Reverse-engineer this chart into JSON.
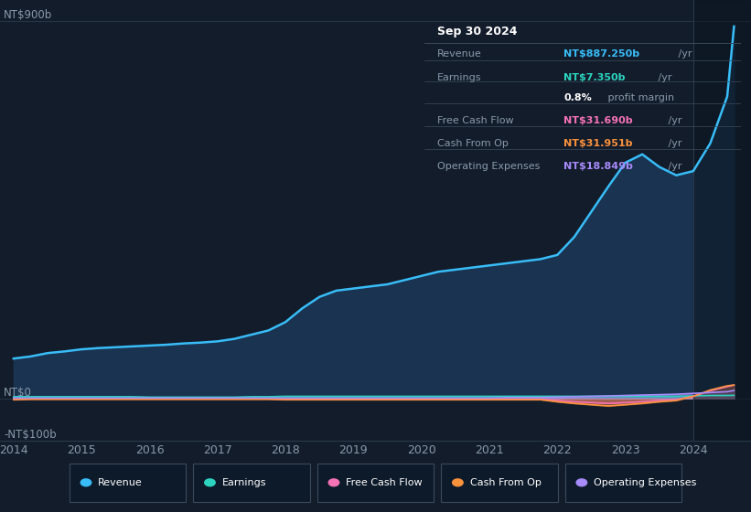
{
  "bg_color": "#131c2b",
  "plot_bg_color": "#131c2b",
  "info_box": {
    "title": "Sep 30 2024",
    "rows": [
      {
        "label": "Revenue",
        "value_colored": "NT$887.250b",
        "value_plain": " /yr",
        "value_color": "#38bdf8"
      },
      {
        "label": "Earnings",
        "value_colored": "NT$7.350b",
        "value_plain": " /yr",
        "value_color": "#2dd4bf"
      },
      {
        "label": "",
        "value_colored": "0.8%",
        "value_plain": " profit margin",
        "value_color": "#ffffff"
      },
      {
        "label": "Free Cash Flow",
        "value_colored": "NT$31.690b",
        "value_plain": " /yr",
        "value_color": "#f472b6"
      },
      {
        "label": "Cash From Op",
        "value_colored": "NT$31.951b",
        "value_plain": " /yr",
        "value_color": "#fb923c"
      },
      {
        "label": "Operating Expenses",
        "value_colored": "NT$18.849b",
        "value_plain": " /yr",
        "value_color": "#a78bfa"
      }
    ]
  },
  "years": [
    2014.0,
    2014.25,
    2014.5,
    2014.75,
    2015.0,
    2015.25,
    2015.5,
    2015.75,
    2016.0,
    2016.25,
    2016.5,
    2016.75,
    2017.0,
    2017.25,
    2017.5,
    2017.75,
    2018.0,
    2018.25,
    2018.5,
    2018.75,
    2019.0,
    2019.25,
    2019.5,
    2019.75,
    2020.0,
    2020.25,
    2020.5,
    2020.75,
    2021.0,
    2021.25,
    2021.5,
    2021.75,
    2022.0,
    2022.25,
    2022.5,
    2022.75,
    2023.0,
    2023.25,
    2023.5,
    2023.75,
    2024.0,
    2024.25,
    2024.5,
    2024.6
  ],
  "revenue": [
    95,
    100,
    108,
    112,
    117,
    120,
    122,
    124,
    126,
    128,
    131,
    133,
    136,
    142,
    152,
    162,
    182,
    215,
    242,
    257,
    262,
    267,
    272,
    282,
    292,
    302,
    307,
    312,
    317,
    322,
    327,
    332,
    342,
    385,
    445,
    505,
    562,
    582,
    552,
    532,
    542,
    608,
    720,
    887
  ],
  "earnings": [
    4,
    4,
    4,
    4,
    4,
    4,
    4,
    4,
    3,
    3,
    3,
    3,
    3,
    3,
    4,
    4,
    5,
    5,
    5,
    5,
    5,
    5,
    5,
    5,
    5,
    5,
    5,
    5,
    5,
    5,
    5,
    5,
    5,
    5,
    5,
    5,
    5,
    5,
    5,
    5,
    6,
    7,
    7,
    7.35
  ],
  "free_cash_flow": [
    -2,
    -1,
    -1,
    -1,
    -1,
    -1,
    -1,
    -1,
    -1,
    -1,
    -1,
    -1,
    -1,
    -1,
    -1,
    -1,
    -2,
    -2,
    -2,
    -2,
    -2,
    -2,
    -2,
    -2,
    -2,
    -2,
    -2,
    -2,
    -2,
    -2,
    -2,
    -2,
    -5,
    -8,
    -10,
    -12,
    -10,
    -8,
    -5,
    -3,
    5,
    18,
    28,
    31.69
  ],
  "cash_from_op": [
    -3,
    -2,
    -2,
    -2,
    -2,
    -2,
    -2,
    -2,
    -2,
    -2,
    -2,
    -2,
    -2,
    -2,
    -2,
    -2,
    -3,
    -3,
    -3,
    -3,
    -3,
    -3,
    -3,
    -3,
    -3,
    -3,
    -3,
    -3,
    -3,
    -3,
    -3,
    -3,
    -8,
    -12,
    -15,
    -18,
    -15,
    -12,
    -8,
    -5,
    5,
    20,
    30,
    31.951
  ],
  "operating_expenses": [
    1,
    1,
    1,
    1,
    1,
    1,
    1,
    1,
    1,
    1,
    1,
    1,
    1,
    1,
    1,
    1,
    1,
    1,
    1,
    1,
    1,
    1,
    1,
    1,
    1,
    1,
    1,
    1,
    1,
    2,
    2,
    2,
    3,
    4,
    5,
    6,
    7,
    8,
    9,
    10,
    12,
    14,
    16,
    18.849
  ],
  "revenue_color": "#38bdf8",
  "revenue_fill_color": "#1a3350",
  "earnings_color": "#2dd4bf",
  "free_cash_flow_color": "#f472b6",
  "cash_from_op_color": "#fb923c",
  "operating_expenses_color": "#a78bfa",
  "ylim": [
    -100,
    950
  ],
  "xlim": [
    2013.8,
    2024.85
  ],
  "yticks": [
    -100,
    0,
    900
  ],
  "ytick_labels": [
    "-NT$100b",
    "NT$0",
    "NT$900b"
  ],
  "xticks": [
    2014,
    2015,
    2016,
    2017,
    2018,
    2019,
    2020,
    2021,
    2022,
    2023,
    2024
  ],
  "legend_items": [
    {
      "label": "Revenue",
      "color": "#38bdf8"
    },
    {
      "label": "Earnings",
      "color": "#2dd4bf"
    },
    {
      "label": "Free Cash Flow",
      "color": "#f472b6"
    },
    {
      "label": "Cash From Op",
      "color": "#fb923c"
    },
    {
      "label": "Operating Expenses",
      "color": "#a78bfa"
    }
  ],
  "forecast_start": 2024.0,
  "forecast_end": 2024.85,
  "grid_color": "#2a3a4a",
  "spine_color": "#2a3a4a",
  "tick_label_color": "#8899aa",
  "info_box_bg": "#0d1117",
  "info_box_border": "#3a4a5a",
  "label_color": "#8899aa",
  "legend_border": "#3a4a5a",
  "legend_bg": "#0d1a2a"
}
